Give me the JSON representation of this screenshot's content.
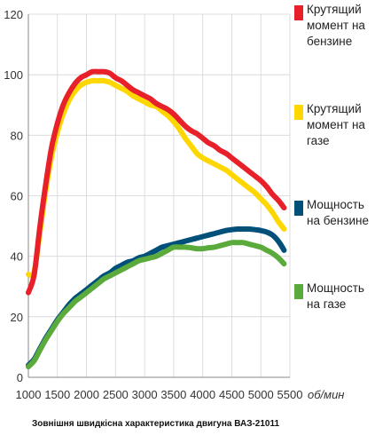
{
  "caption": "Зовнішня швидкісна характеристика двигуна ВАЗ-21011",
  "chart_data": {
    "type": "line",
    "xlabel": "об/мин",
    "ylabel": "",
    "xlim": [
      1000,
      5500
    ],
    "ylim": [
      0,
      120
    ],
    "x_ticks": [
      1000,
      1500,
      2000,
      2500,
      3000,
      3500,
      4000,
      4500,
      5000,
      5500
    ],
    "y_ticks": [
      0,
      20,
      40,
      60,
      80,
      100,
      120
    ],
    "x_tick_labels": [
      "1000",
      "1500",
      "2000",
      "2500",
      "3000",
      "3500",
      "4000",
      "4500",
      "5000",
      "5500"
    ],
    "y_tick_labels": [
      "0",
      "20",
      "40",
      "60",
      "80",
      "100",
      "120"
    ],
    "grid": true,
    "legend_position": "right",
    "series": [
      {
        "name": "Крутящий момент на бензине",
        "color": "#e8202a",
        "x": [
          1000,
          1100,
          1200,
          1300,
          1400,
          1500,
          1600,
          1700,
          1800,
          1900,
          2000,
          2100,
          2200,
          2300,
          2400,
          2500,
          2600,
          2700,
          2800,
          2900,
          3000,
          3100,
          3200,
          3300,
          3400,
          3500,
          3600,
          3700,
          3800,
          3900,
          4000,
          4100,
          4200,
          4300,
          4400,
          4500,
          4600,
          4700,
          4800,
          4900,
          5000,
          5100,
          5200,
          5300,
          5400
        ],
        "values": [
          28,
          34,
          50,
          64,
          76,
          84,
          90,
          94,
          97,
          99,
          100,
          101,
          101,
          101,
          100.5,
          99,
          98,
          96.5,
          95,
          94,
          93,
          92,
          90.5,
          89.5,
          88.5,
          87,
          85,
          83,
          81.5,
          80.5,
          79,
          77.5,
          76.5,
          75,
          74,
          72.5,
          71,
          69.5,
          68,
          66.5,
          65,
          63,
          60.5,
          58.5,
          56
        ]
      },
      {
        "name": "Крутящий момент на газе",
        "color": "#ffd700",
        "x": [
          1000,
          1100,
          1200,
          1300,
          1400,
          1500,
          1600,
          1700,
          1800,
          1900,
          2000,
          2100,
          2200,
          2300,
          2400,
          2500,
          2600,
          2700,
          2800,
          2900,
          3000,
          3100,
          3200,
          3300,
          3400,
          3500,
          3600,
          3700,
          3800,
          3900,
          4000,
          4100,
          4200,
          4300,
          4400,
          4500,
          4600,
          4700,
          4800,
          4900,
          5000,
          5100,
          5200,
          5300,
          5400
        ],
        "values": [
          34,
          35,
          48,
          62,
          73,
          81,
          87,
          91.5,
          94.5,
          96.5,
          97.5,
          98,
          98,
          98,
          97.5,
          96.5,
          95.5,
          94.5,
          93,
          92,
          91,
          90,
          89.5,
          88,
          86.5,
          84.5,
          82,
          79,
          76.5,
          74,
          72.5,
          71.5,
          70.5,
          69.5,
          68.5,
          67,
          65.5,
          64,
          62.5,
          61,
          59,
          57,
          54.5,
          51.5,
          49
        ]
      },
      {
        "name": "Мощность на бензине",
        "color": "#00507a",
        "x": [
          1000,
          1100,
          1200,
          1300,
          1400,
          1500,
          1600,
          1700,
          1800,
          1900,
          2000,
          2100,
          2200,
          2300,
          2400,
          2500,
          2600,
          2700,
          2800,
          2900,
          3000,
          3100,
          3200,
          3300,
          3400,
          3500,
          3600,
          3700,
          3800,
          3900,
          4000,
          4100,
          4200,
          4300,
          4400,
          4500,
          4600,
          4700,
          4800,
          4900,
          5000,
          5100,
          5200,
          5300,
          5400
        ],
        "values": [
          4,
          6,
          9.5,
          13,
          16,
          19,
          21.5,
          24,
          26,
          27.5,
          29,
          30.5,
          32,
          33.5,
          34.5,
          36,
          37,
          38,
          38.5,
          39.5,
          40,
          41,
          42,
          43,
          43.5,
          44,
          44.5,
          45,
          45.5,
          46,
          46.5,
          47,
          47.5,
          48,
          48.5,
          48.8,
          49,
          49,
          49,
          48.8,
          48.5,
          48,
          47,
          45,
          42
        ]
      },
      {
        "name": "Мощность на газе",
        "color": "#5aaa3c",
        "x": [
          1000,
          1100,
          1200,
          1300,
          1400,
          1500,
          1600,
          1700,
          1800,
          1900,
          2000,
          2100,
          2200,
          2300,
          2400,
          2500,
          2600,
          2700,
          2800,
          2900,
          3000,
          3100,
          3200,
          3300,
          3400,
          3500,
          3600,
          3700,
          3800,
          3900,
          4000,
          4100,
          4200,
          4300,
          4400,
          4500,
          4600,
          4700,
          4800,
          4900,
          5000,
          5100,
          5200,
          5300,
          5400
        ],
        "values": [
          3.5,
          5.5,
          9,
          12.5,
          15.5,
          18.5,
          21,
          23,
          25,
          26.5,
          28,
          29.5,
          31,
          32.5,
          33.5,
          34.5,
          35.5,
          36.5,
          37.5,
          38.5,
          39,
          39.5,
          40,
          41,
          42,
          43,
          43,
          43,
          42.8,
          42.5,
          42.5,
          42.8,
          43,
          43.5,
          44,
          44.5,
          44.5,
          44.5,
          44,
          43.5,
          43,
          42,
          41,
          39.5,
          37.5
        ]
      }
    ]
  },
  "legend": [
    {
      "lines": [
        "Крутящий",
        "момент на",
        "бензине"
      ],
      "color": "#e8202a"
    },
    {
      "lines": [
        "Крутящий",
        "момент на",
        "газе"
      ],
      "color": "#ffd700"
    },
    {
      "lines": [
        "Мощность",
        "на бензине"
      ],
      "color": "#00507a"
    },
    {
      "lines": [
        "Мощность",
        "на газе"
      ],
      "color": "#5aaa3c"
    }
  ]
}
